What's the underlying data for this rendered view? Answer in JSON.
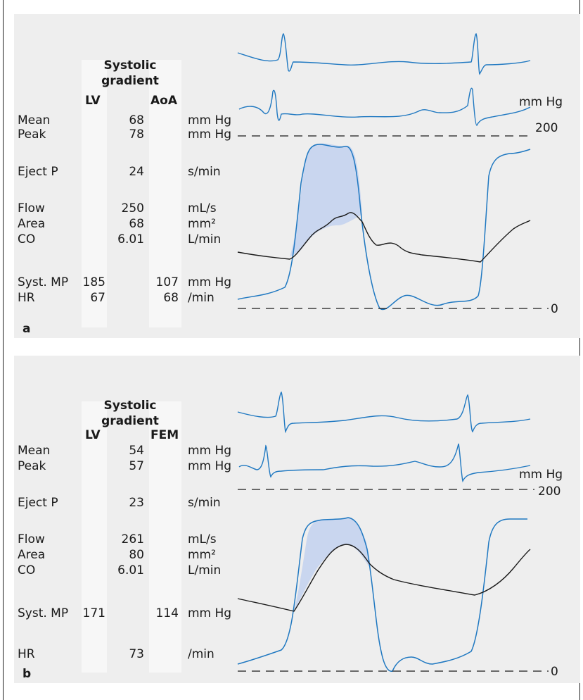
{
  "panels": [
    {
      "id": "a",
      "label": "a",
      "header": {
        "title_line1": "Systolic",
        "title_line2": "gradient",
        "col_left": "LV",
        "col_right": "AoA"
      },
      "rows": {
        "mean": {
          "label": "Mean",
          "lv": "",
          "grad": "68",
          "right": "",
          "unit": "mm Hg"
        },
        "peak": {
          "label": "Peak",
          "lv": "",
          "grad": "78",
          "right": "",
          "unit": "mm Hg"
        },
        "eject": {
          "label": "Eject P",
          "lv": "",
          "grad": "24",
          "right": "",
          "unit": "s/min"
        },
        "flow": {
          "label": "Flow",
          "lv": "",
          "grad": "250",
          "right": "",
          "unit": "mL/s"
        },
        "area": {
          "label": "Area",
          "lv": "",
          "grad": "68",
          "right": "",
          "unit": "mm²"
        },
        "co": {
          "label": "CO",
          "lv": "",
          "grad": "6.01",
          "right": "",
          "unit": "L/min"
        },
        "syst": {
          "label": "Syst. MP",
          "lv": "185",
          "grad": "",
          "right": "107",
          "unit": "mm Hg"
        },
        "hr": {
          "label": "HR",
          "lv": "67",
          "grad": "",
          "right": "68",
          "unit": "/min"
        }
      },
      "scale": {
        "unit": "mm Hg",
        "top": "200",
        "zero": "0"
      }
    },
    {
      "id": "b",
      "label": "b",
      "header": {
        "title_line1": "Systolic",
        "title_line2": "gradient",
        "col_left": "LV",
        "col_right": "FEM"
      },
      "rows": {
        "mean": {
          "label": "Mean",
          "lv": "",
          "grad": "54",
          "right": "",
          "unit": "mm Hg"
        },
        "peak": {
          "label": "Peak",
          "lv": "",
          "grad": "57",
          "right": "",
          "unit": "mm Hg"
        },
        "eject": {
          "label": "Eject P",
          "lv": "",
          "grad": "23",
          "right": "",
          "unit": "s/min"
        },
        "flow": {
          "label": "Flow",
          "lv": "",
          "grad": "261",
          "right": "",
          "unit": "mL/s"
        },
        "area": {
          "label": "Area",
          "lv": "",
          "grad": "80",
          "right": "",
          "unit": "mm²"
        },
        "co": {
          "label": "CO",
          "lv": "",
          "grad": "6.01",
          "right": "",
          "unit": "L/min"
        },
        "syst": {
          "label": "Syst. MP",
          "lv": "171",
          "grad": "",
          "right": "114",
          "unit": "mm Hg"
        },
        "hr": {
          "label": "HR",
          "lv": "",
          "grad": "73",
          "right": "",
          "unit": "/min"
        }
      },
      "scale": {
        "unit": "mm Hg",
        "top": "200",
        "zero": "0"
      }
    }
  ],
  "colors": {
    "panel_bg": "#eeeeee",
    "column_band": "#f7f7f7",
    "lv_trace": "#1f78c1",
    "aortic_trace": "#1a1a1a",
    "gradient_fill": "#c9d6ef"
  }
}
